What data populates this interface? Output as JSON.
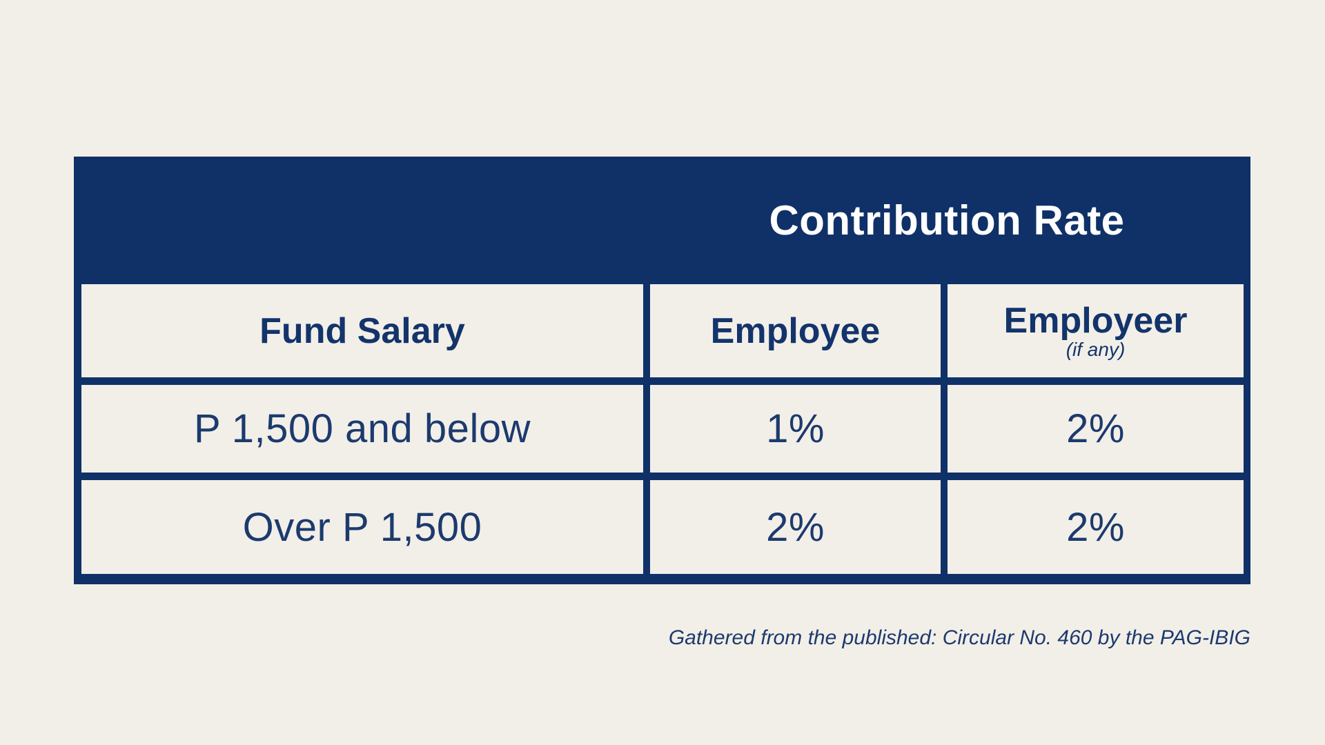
{
  "colors": {
    "background": "#F2EFE8",
    "navy": "#0F3168",
    "header_text": "#13346B",
    "body_text": "#1C3A6E",
    "banner_text": "#FFFFFF"
  },
  "banner": {
    "title": "Contribution Rate"
  },
  "table": {
    "columns": [
      {
        "label": "Fund Salary"
      },
      {
        "label": "Employee"
      },
      {
        "label": "Employeer",
        "sublabel": "(if any)"
      }
    ],
    "rows": [
      {
        "fund_salary": "P 1,500 and below",
        "employee": "1%",
        "employer": "2%"
      },
      {
        "fund_salary": "Over P 1,500",
        "employee": "2%",
        "employer": "2%"
      }
    ]
  },
  "caption": "Gathered from the published: Circular No. 460 by the PAG-IBIG",
  "chart_data": {
    "type": "table",
    "title": "Contribution Rate",
    "columns": [
      "Fund Salary",
      "Employee",
      "Employeer (if any)"
    ],
    "rows": [
      [
        "P 1,500 and below",
        "1%",
        "2%"
      ],
      [
        "Over P 1,500",
        "2%",
        "2%"
      ]
    ],
    "source_note": "Gathered from the published: Circular No. 460 by the PAG-IBIG"
  }
}
